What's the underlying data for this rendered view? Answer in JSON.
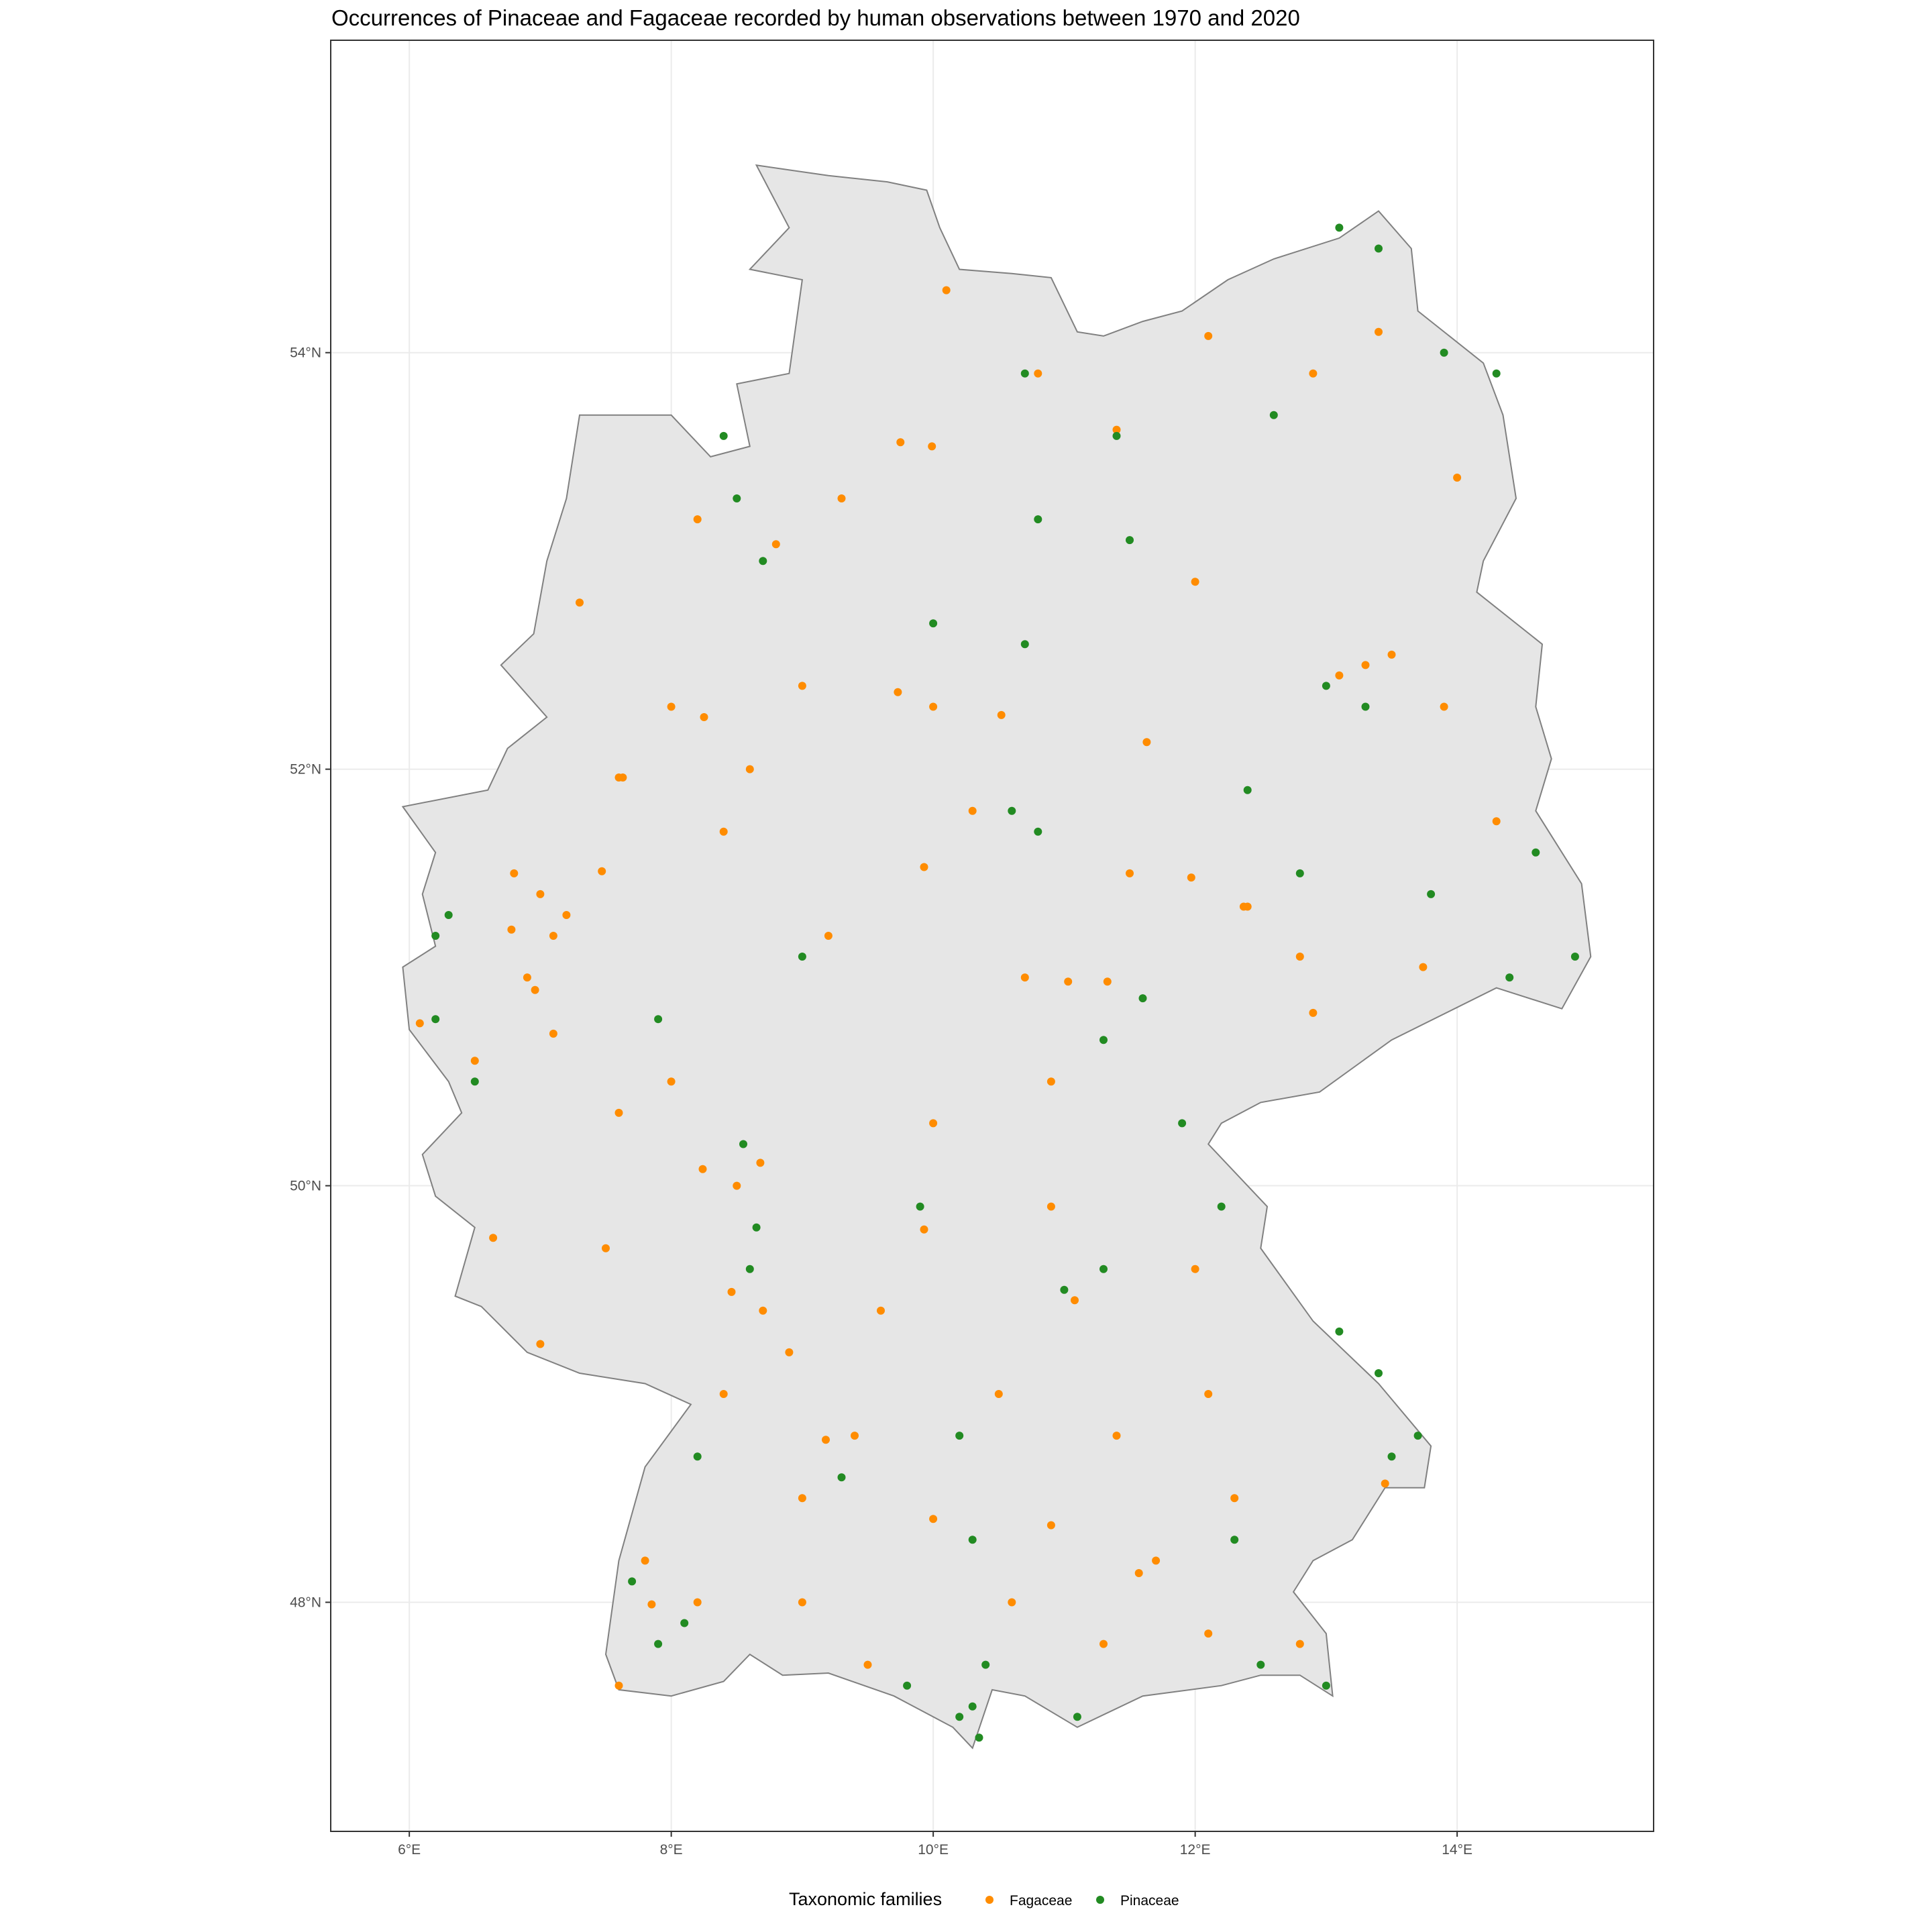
{
  "title": "Occurrences of Pinaceae and Fagaceae recorded by human observations between 1970 and 2020",
  "colors": {
    "land": "#e6e6e6",
    "border": "#808080",
    "grid": "#ebebeb",
    "panel_border": "#333333",
    "fagaceae": "#ff8c00",
    "pinaceae": "#228b22"
  },
  "chart_data": {
    "type": "scatter",
    "x_axis": {
      "range": [
        5.4,
        15.5
      ],
      "ticks": [
        6,
        8,
        10,
        12,
        14
      ],
      "tick_labels": [
        "6°E",
        "8°E",
        "10°E",
        "12°E",
        "14°E"
      ]
    },
    "y_axis": {
      "range": [
        46.9,
        55.5
      ],
      "ticks": [
        48,
        50,
        52,
        54
      ],
      "tick_labels": [
        "48°N",
        "50°N",
        "52°N",
        "54°N"
      ]
    },
    "grid": true,
    "legend": {
      "position": "bottom",
      "title": "Taxonomic families",
      "entries": [
        {
          "name": "Fagaceae",
          "color": "#ff8c00"
        },
        {
          "name": "Pinaceae",
          "color": "#228b22"
        }
      ]
    },
    "country_outline_lonlat": [
      [
        8.65,
        54.9
      ],
      [
        9.2,
        54.85
      ],
      [
        9.65,
        54.82
      ],
      [
        9.95,
        54.78
      ],
      [
        10.05,
        54.6
      ],
      [
        10.2,
        54.4
      ],
      [
        10.6,
        54.38
      ],
      [
        10.9,
        54.36
      ],
      [
        11.1,
        54.1
      ],
      [
        11.3,
        54.08
      ],
      [
        11.6,
        54.15
      ],
      [
        11.9,
        54.2
      ],
      [
        12.25,
        54.35
      ],
      [
        12.6,
        54.45
      ],
      [
        13.1,
        54.55
      ],
      [
        13.4,
        54.68
      ],
      [
        13.65,
        54.5
      ],
      [
        13.7,
        54.2
      ],
      [
        14.2,
        53.95
      ],
      [
        14.35,
        53.7
      ],
      [
        14.45,
        53.3
      ],
      [
        14.2,
        53.0
      ],
      [
        14.15,
        52.85
      ],
      [
        14.65,
        52.6
      ],
      [
        14.6,
        52.3
      ],
      [
        14.72,
        52.05
      ],
      [
        14.6,
        51.8
      ],
      [
        14.95,
        51.45
      ],
      [
        15.02,
        51.1
      ],
      [
        14.8,
        50.85
      ],
      [
        14.3,
        50.95
      ],
      [
        13.5,
        50.7
      ],
      [
        12.95,
        50.45
      ],
      [
        12.5,
        50.4
      ],
      [
        12.2,
        50.3
      ],
      [
        12.1,
        50.2
      ],
      [
        12.55,
        49.9
      ],
      [
        12.5,
        49.7
      ],
      [
        12.9,
        49.35
      ],
      [
        13.4,
        49.05
      ],
      [
        13.8,
        48.75
      ],
      [
        13.75,
        48.55
      ],
      [
        13.45,
        48.55
      ],
      [
        13.2,
        48.3
      ],
      [
        12.9,
        48.2
      ],
      [
        12.75,
        48.05
      ],
      [
        13.0,
        47.85
      ],
      [
        13.05,
        47.55
      ],
      [
        12.8,
        47.65
      ],
      [
        12.5,
        47.65
      ],
      [
        12.2,
        47.6
      ],
      [
        11.6,
        47.55
      ],
      [
        11.1,
        47.4
      ],
      [
        10.7,
        47.55
      ],
      [
        10.45,
        47.58
      ],
      [
        10.3,
        47.3
      ],
      [
        10.15,
        47.4
      ],
      [
        9.7,
        47.55
      ],
      [
        9.2,
        47.66
      ],
      [
        8.85,
        47.65
      ],
      [
        8.6,
        47.75
      ],
      [
        8.4,
        47.62
      ],
      [
        8.0,
        47.55
      ],
      [
        7.6,
        47.58
      ],
      [
        7.5,
        47.75
      ],
      [
        7.6,
        48.2
      ],
      [
        7.8,
        48.65
      ],
      [
        8.15,
        48.95
      ],
      [
        7.8,
        49.05
      ],
      [
        7.3,
        49.1
      ],
      [
        6.9,
        49.2
      ],
      [
        6.55,
        49.42
      ],
      [
        6.35,
        49.47
      ],
      [
        6.5,
        49.8
      ],
      [
        6.2,
        49.95
      ],
      [
        6.1,
        50.15
      ],
      [
        6.4,
        50.35
      ],
      [
        6.3,
        50.5
      ],
      [
        6.0,
        50.75
      ],
      [
        5.95,
        51.05
      ],
      [
        6.2,
        51.15
      ],
      [
        6.1,
        51.4
      ],
      [
        6.2,
        51.6
      ],
      [
        5.95,
        51.82
      ],
      [
        6.6,
        51.9
      ],
      [
        6.75,
        52.1
      ],
      [
        7.05,
        52.25
      ],
      [
        6.7,
        52.5
      ],
      [
        6.95,
        52.65
      ],
      [
        7.05,
        53.0
      ],
      [
        7.2,
        53.3
      ],
      [
        7.3,
        53.7
      ],
      [
        8.0,
        53.7
      ],
      [
        8.3,
        53.5
      ],
      [
        8.6,
        53.55
      ],
      [
        8.5,
        53.85
      ],
      [
        8.9,
        53.9
      ],
      [
        9.0,
        54.35
      ],
      [
        8.6,
        54.4
      ],
      [
        8.9,
        54.6
      ]
    ],
    "series": [
      {
        "name": "Fagaceae",
        "color": "#ff8c00",
        "points": [
          [
            7.0,
            51.4
          ],
          [
            7.2,
            51.3
          ],
          [
            6.8,
            51.5
          ],
          [
            7.1,
            51.2
          ],
          [
            6.9,
            51.0
          ],
          [
            7.6,
            51.96
          ],
          [
            8.25,
            52.25
          ],
          [
            9.75,
            53.57
          ],
          [
            10.1,
            54.3
          ],
          [
            10.0,
            52.3
          ],
          [
            13.3,
            52.5
          ],
          [
            13.1,
            52.45
          ],
          [
            13.5,
            52.55
          ],
          [
            12.4,
            51.34
          ],
          [
            13.74,
            51.05
          ],
          [
            11.57,
            48.14
          ],
          [
            11.7,
            48.2
          ],
          [
            11.08,
            49.45
          ],
          [
            9.18,
            48.78
          ],
          [
            9.4,
            48.8
          ],
          [
            8.68,
            50.11
          ],
          [
            8.5,
            50.0
          ],
          [
            8.46,
            49.49
          ],
          [
            8.7,
            49.4
          ],
          [
            8.4,
            49.0
          ],
          [
            7.85,
            47.99
          ],
          [
            7.8,
            48.2
          ],
          [
            9.99,
            53.55
          ],
          [
            8.8,
            53.08
          ],
          [
            7.63,
            51.96
          ],
          [
            6.96,
            50.94
          ],
          [
            6.78,
            51.23
          ],
          [
            7.47,
            51.51
          ],
          [
            7.1,
            50.73
          ],
          [
            6.08,
            50.78
          ],
          [
            7.6,
            50.35
          ],
          [
            8.24,
            50.08
          ],
          [
            6.64,
            49.75
          ],
          [
            7.0,
            49.24
          ],
          [
            8.4,
            51.7
          ],
          [
            9.93,
            51.53
          ],
          [
            9.73,
            52.37
          ],
          [
            10.52,
            52.26
          ],
          [
            11.63,
            52.13
          ],
          [
            11.97,
            51.48
          ],
          [
            12.37,
            51.34
          ],
          [
            11.03,
            50.98
          ],
          [
            11.33,
            50.98
          ],
          [
            12.9,
            50.83
          ],
          [
            10.9,
            50.5
          ],
          [
            9.93,
            49.79
          ],
          [
            10.9,
            49.9
          ],
          [
            12.1,
            49.0
          ],
          [
            13.45,
            48.57
          ],
          [
            10.9,
            48.37
          ],
          [
            10.0,
            48.4
          ],
          [
            9.0,
            48.5
          ],
          [
            8.2,
            48.0
          ],
          [
            7.6,
            47.6
          ],
          [
            9.5,
            47.7
          ],
          [
            11.3,
            47.8
          ],
          [
            12.1,
            47.85
          ],
          [
            12.8,
            47.8
          ],
          [
            12.3,
            48.5
          ],
          [
            11.4,
            48.8
          ],
          [
            12.0,
            49.6
          ],
          [
            10.0,
            50.3
          ],
          [
            9.2,
            51.2
          ],
          [
            8.0,
            50.5
          ],
          [
            10.8,
            53.9
          ],
          [
            12.1,
            54.08
          ],
          [
            11.4,
            53.63
          ],
          [
            12.9,
            53.9
          ],
          [
            13.4,
            54.1
          ],
          [
            14.0,
            53.4
          ],
          [
            12.0,
            52.9
          ],
          [
            14.3,
            51.75
          ],
          [
            13.9,
            52.3
          ],
          [
            11.5,
            51.5
          ],
          [
            10.3,
            51.8
          ],
          [
            9.0,
            52.4
          ],
          [
            8.0,
            52.3
          ],
          [
            7.3,
            52.8
          ],
          [
            8.2,
            53.2
          ],
          [
            9.3,
            53.3
          ],
          [
            6.5,
            50.6
          ],
          [
            7.5,
            49.7
          ],
          [
            8.9,
            49.2
          ],
          [
            9.6,
            49.4
          ],
          [
            10.5,
            49.0
          ],
          [
            9.0,
            48.0
          ],
          [
            10.6,
            48.0
          ],
          [
            8.6,
            52.0
          ],
          [
            10.7,
            51.0
          ],
          [
            12.8,
            51.1
          ]
        ]
      },
      {
        "name": "Pinaceae",
        "color": "#228b22",
        "points": [
          [
            10.3,
            47.5
          ],
          [
            10.2,
            47.45
          ],
          [
            10.35,
            47.35
          ],
          [
            10.6,
            51.8
          ],
          [
            10.8,
            51.7
          ],
          [
            13.0,
            52.4
          ],
          [
            13.3,
            52.3
          ],
          [
            6.2,
            51.2
          ],
          [
            6.3,
            51.3
          ],
          [
            8.6,
            49.6
          ],
          [
            8.65,
            49.8
          ],
          [
            8.55,
            50.2
          ],
          [
            9.0,
            51.1
          ],
          [
            10.7,
            52.6
          ],
          [
            10.8,
            53.2
          ],
          [
            8.7,
            53.0
          ],
          [
            8.5,
            53.3
          ],
          [
            8.4,
            53.6
          ],
          [
            10.7,
            53.9
          ],
          [
            11.4,
            53.6
          ],
          [
            13.1,
            54.6
          ],
          [
            13.4,
            54.5
          ],
          [
            13.9,
            54.0
          ],
          [
            14.3,
            53.9
          ],
          [
            13.8,
            51.4
          ],
          [
            14.4,
            51.0
          ],
          [
            14.9,
            51.1
          ],
          [
            13.7,
            48.8
          ],
          [
            13.4,
            49.1
          ],
          [
            13.1,
            49.3
          ],
          [
            12.5,
            47.7
          ],
          [
            11.1,
            47.45
          ],
          [
            7.9,
            47.8
          ],
          [
            7.7,
            48.1
          ],
          [
            8.2,
            48.7
          ],
          [
            9.3,
            48.6
          ],
          [
            10.2,
            48.8
          ],
          [
            11.3,
            50.7
          ],
          [
            11.6,
            50.9
          ],
          [
            11.9,
            50.3
          ],
          [
            12.2,
            49.9
          ],
          [
            13.5,
            48.7
          ],
          [
            13.0,
            47.6
          ],
          [
            12.3,
            48.3
          ],
          [
            10.4,
            47.7
          ],
          [
            9.8,
            47.6
          ],
          [
            8.1,
            47.9
          ],
          [
            11.0,
            49.5
          ],
          [
            11.3,
            49.6
          ],
          [
            6.2,
            50.8
          ],
          [
            6.5,
            50.5
          ],
          [
            7.9,
            50.8
          ],
          [
            10.0,
            52.7
          ],
          [
            11.5,
            53.1
          ],
          [
            12.6,
            53.7
          ],
          [
            12.4,
            51.9
          ],
          [
            12.8,
            51.5
          ],
          [
            14.6,
            51.6
          ],
          [
            10.3,
            48.3
          ],
          [
            9.9,
            49.9
          ]
        ]
      }
    ]
  }
}
